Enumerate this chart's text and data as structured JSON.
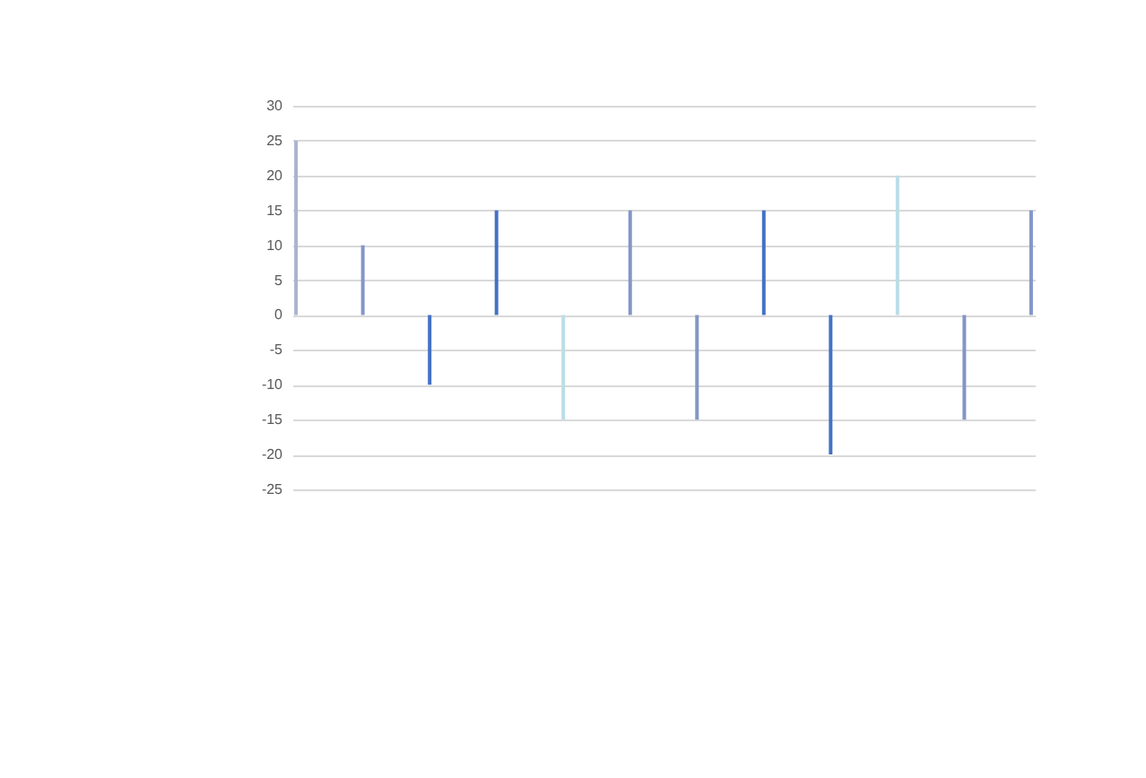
{
  "chart_data": {
    "type": "bar",
    "categories": [
      null,
      null,
      null,
      null,
      null,
      null,
      null,
      null,
      null,
      null,
      null,
      null
    ],
    "values": [
      25,
      10,
      -10,
      15,
      -15,
      15,
      -15,
      15,
      -20,
      20,
      -15,
      15
    ],
    "colors": [
      "#aab4d2",
      "#8496c8",
      "#4472c4",
      "#4472c4",
      "#bcdde6",
      "#8496c8",
      "#8496c8",
      "#4472c4",
      "#4472c4",
      "#bcdde6",
      "#8496c8",
      "#8496c8"
    ],
    "ylim": [
      -25,
      30
    ],
    "yticks": [
      -25,
      -20,
      -15,
      -10,
      -5,
      0,
      5,
      10,
      15,
      20,
      25,
      30
    ],
    "grid": "y",
    "tick_labels": "y"
  }
}
